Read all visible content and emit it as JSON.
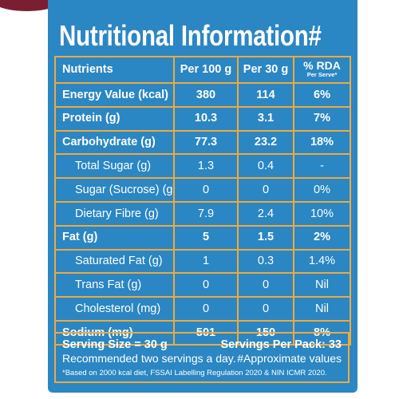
{
  "title": "Nutritional Information#",
  "table": {
    "headers": {
      "nutrients": "Nutrients",
      "per100": "Per 100 g",
      "per30": "Per 30 g",
      "rda": "% RDA",
      "rda_sub": "Per Serve*"
    },
    "rows": [
      {
        "name": "Energy Value (kcal)",
        "per100": "380",
        "per30": "114",
        "rda": "6%"
      },
      {
        "name": "Protein (g)",
        "per100": "10.3",
        "per30": "3.1",
        "rda": "7%"
      },
      {
        "name": "Carbohydrate (g)",
        "per100": "77.3",
        "per30": "23.2",
        "rda": "18%"
      },
      {
        "name": "Total Sugar (g)",
        "per100": "1.3",
        "per30": "0.4",
        "rda": "-"
      },
      {
        "name": "Sugar (Sucrose) (g)",
        "per100": "0",
        "per30": "0",
        "rda": "0%"
      },
      {
        "name": "Dietary Fibre (g)",
        "per100": "7.9",
        "per30": "2.4",
        "rda": "10%"
      },
      {
        "name": "Fat (g)",
        "per100": "5",
        "per30": "1.5",
        "rda": "2%"
      },
      {
        "name": "Saturated Fat (g)",
        "per100": "1",
        "per30": "0.3",
        "rda": "1.4%"
      },
      {
        "name": "Trans Fat (g)",
        "per100": "0",
        "per30": "0",
        "rda": "Nil"
      },
      {
        "name": "Cholesterol (mg)",
        "per100": "0",
        "per30": "0",
        "rda": "Nil"
      },
      {
        "name": "Sodium (mg)",
        "per100": "501",
        "per30": "150",
        "rda": "8%"
      }
    ]
  },
  "footer": {
    "serving_size": "Serving Size = 30 g",
    "servings_per_pack": "Servings Per Pack: 33",
    "recommendation": "Recommended two servings a day.",
    "approx_note": "#Approximate values",
    "footnote": "*Based on 2000 kcal diet, FSSAI Labelling Regulation 2020 & NIN ICMR 2020."
  },
  "colors": {
    "panel_bg": "#2b86c4",
    "border": "#f0a93b",
    "text": "#ffffff",
    "corner_accent": "#7a1f32"
  }
}
